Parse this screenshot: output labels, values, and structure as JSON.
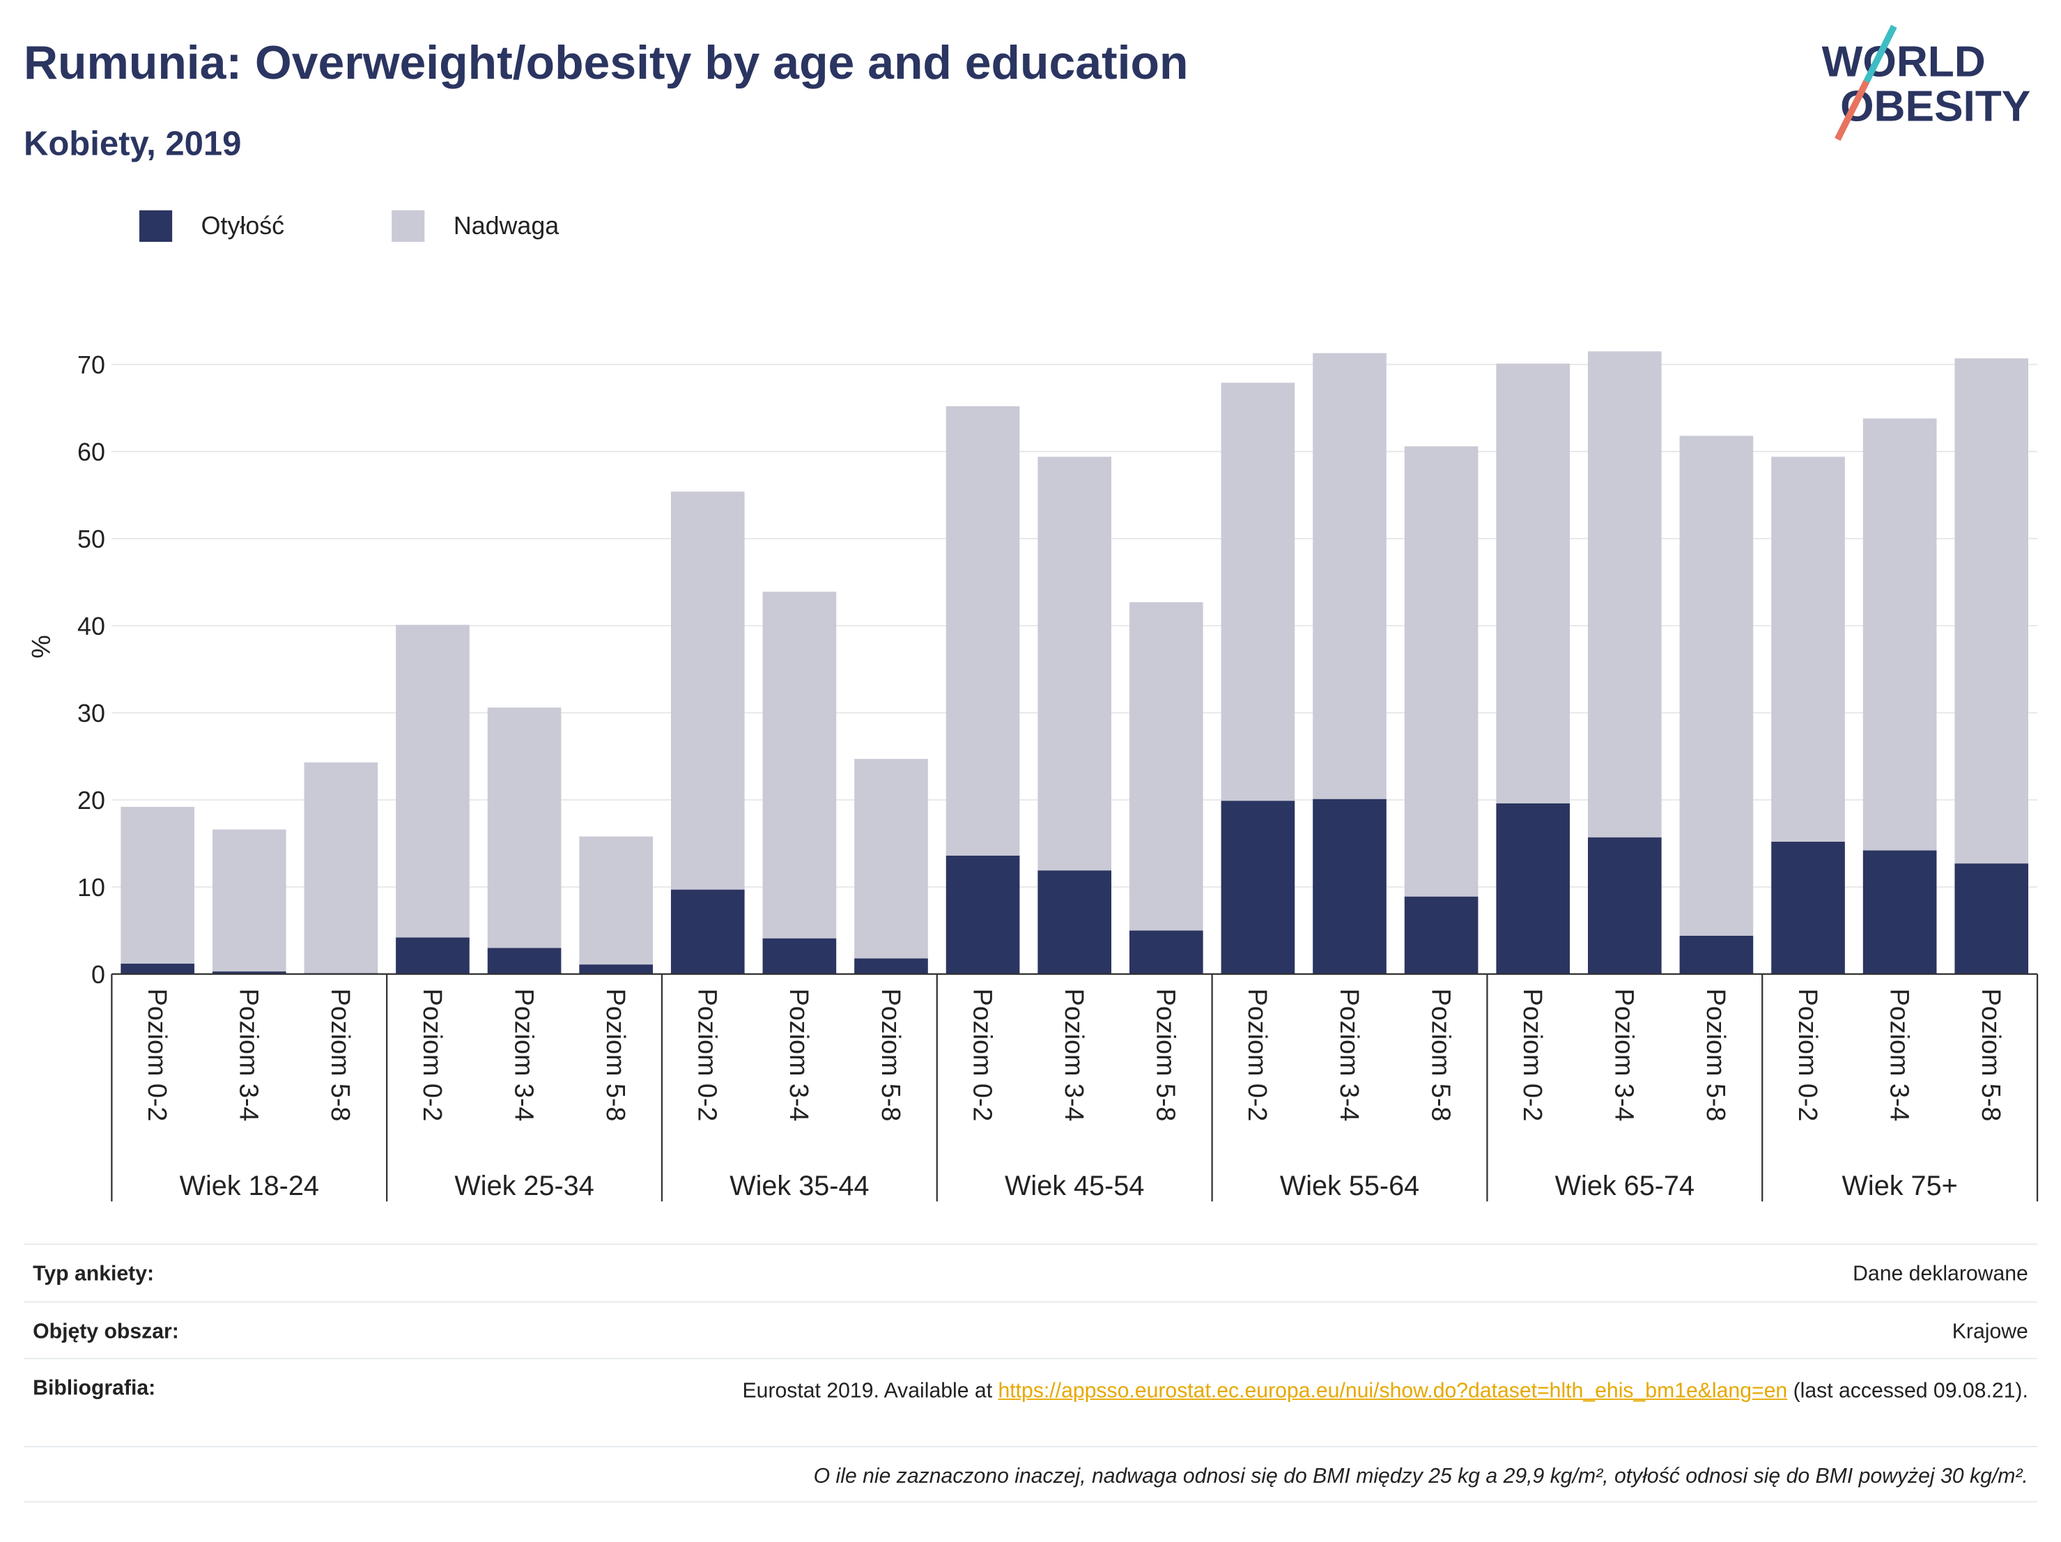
{
  "logo": {
    "line1": "WORLD",
    "line2": "OBESITY"
  },
  "chart_data": {
    "type": "bar",
    "stacked": true,
    "title": "Rumunia: Overweight/obesity by age and education",
    "subtitle": "Kobiety, 2019",
    "y_label": "%",
    "groups": [
      "Wiek 18-24",
      "Wiek 25-34",
      "Wiek 35-44",
      "Wiek 45-54",
      "Wiek 55-64",
      "Wiek 65-74",
      "Wiek 75+"
    ],
    "categories": [
      "Poziom 0-2",
      "Poziom 3-4",
      "Poziom 5-8",
      "Poziom 0-2",
      "Poziom 3-4",
      "Poziom 5-8",
      "Poziom 0-2",
      "Poziom 3-4",
      "Poziom 5-8",
      "Poziom 0-2",
      "Poziom 3-4",
      "Poziom 5-8",
      "Poziom 0-2",
      "Poziom 3-4",
      "Poziom 5-8",
      "Poziom 0-2",
      "Poziom 3-4",
      "Poziom 5-8",
      "Poziom 0-2",
      "Poziom 3-4",
      "Poziom 5-8"
    ],
    "series": [
      {
        "name": "Otyłość",
        "color": "#2b3561",
        "values": [
          1.2,
          0.3,
          0.1,
          4.2,
          3.0,
          1.1,
          9.7,
          4.1,
          1.8,
          13.6,
          11.9,
          5.0,
          19.9,
          20.1,
          8.9,
          19.6,
          15.7,
          4.4,
          15.2,
          14.2,
          12.7
        ]
      },
      {
        "name": "Nadwaga",
        "color": "#c9cad6",
        "values": [
          18.0,
          16.3,
          24.2,
          35.9,
          27.6,
          14.7,
          45.7,
          39.8,
          22.9,
          51.6,
          47.5,
          37.7,
          48.0,
          51.2,
          51.7,
          50.5,
          55.8,
          57.4,
          44.2,
          49.6,
          58.0
        ]
      }
    ],
    "ylim": [
      0,
      72
    ],
    "yticks": [
      0,
      10,
      20,
      30,
      40,
      50,
      60,
      70
    ],
    "grid": true,
    "legend": "top-left"
  },
  "footer": {
    "rows": [
      {
        "label": "Typ ankiety:",
        "value": "Dane deklarowane"
      },
      {
        "label": "Objęty obszar:",
        "value": "Krajowe"
      }
    ],
    "bibliography": {
      "label": "Bibliografia:",
      "prefix": "Eurostat 2019. Available at",
      "link": "https://appsso.eurostat.ec.europa.eu/nui/show.do?dataset=hlth_ehis_bm1e&lang=en",
      "suffix": "(last accessed 09.08.21)."
    },
    "note": "O ile nie zaznaczono inaczej, nadwaga odnosi się do BMI między 25 kg a 29,9 kg/m², otyłość odnosi się do BMI powyżej 30 kg/m²."
  }
}
